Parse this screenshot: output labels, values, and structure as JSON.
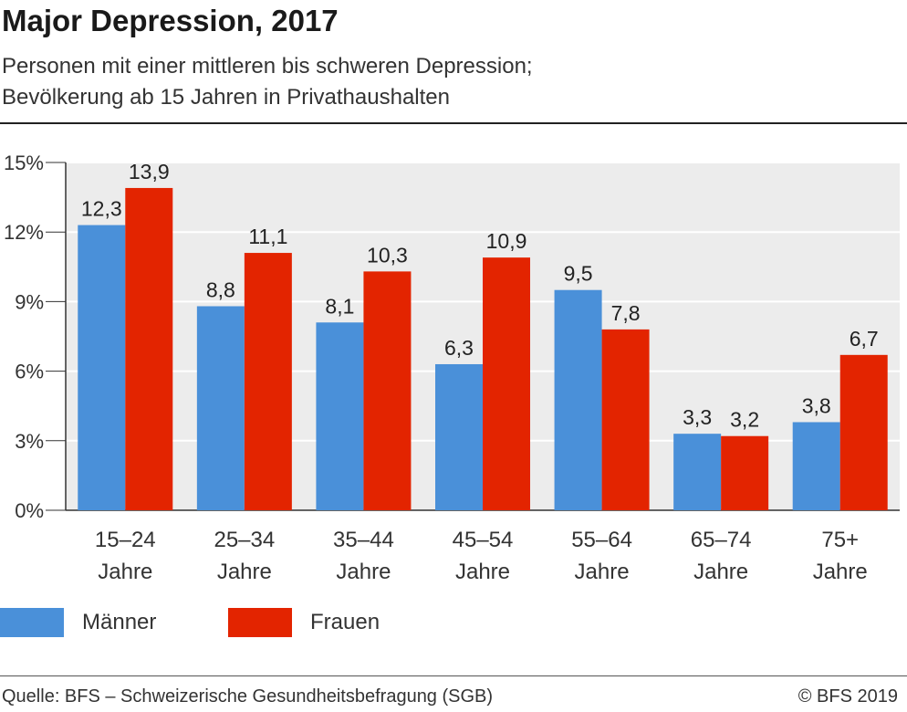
{
  "title": "Major Depression, 2017",
  "subtitle_line1": "Personen mit einer mittleren bis schweren Depression;",
  "subtitle_line2": "Bevölkerung ab 15 Jahren in Privathaushalten",
  "source": "Quelle: BFS – Schweizerische Gesundheitsbefragung (SGB)",
  "copyright": "© BFS 2019",
  "chart_data": {
    "type": "bar",
    "categories": [
      [
        "15–24",
        "Jahre"
      ],
      [
        "25–34",
        "Jahre"
      ],
      [
        "35–44",
        "Jahre"
      ],
      [
        "45–54",
        "Jahre"
      ],
      [
        "55–64",
        "Jahre"
      ],
      [
        "65–74",
        "Jahre"
      ],
      [
        "75+",
        "Jahre"
      ]
    ],
    "series": [
      {
        "name": "Männer",
        "color": "#4a90d9",
        "values": [
          12.3,
          8.8,
          8.1,
          6.3,
          9.5,
          3.3,
          3.8
        ],
        "labels": [
          "12,3",
          "8,8",
          "8,1",
          "6,3",
          "9,5",
          "3,3",
          "3,8"
        ]
      },
      {
        "name": "Frauen",
        "color": "#e32400",
        "values": [
          13.9,
          11.1,
          10.3,
          10.9,
          7.8,
          3.2,
          6.7
        ],
        "labels": [
          "13,9",
          "11,1",
          "10,3",
          "10,9",
          "7,8",
          "3,2",
          "6,7"
        ]
      }
    ],
    "yticks": [
      "0%",
      "3%",
      "6%",
      "9%",
      "12%",
      "15%"
    ],
    "ylim": [
      0,
      15
    ],
    "grid": true,
    "legend": "bottom-left",
    "plot_background": "#ececec",
    "gridline_color": "#ffffff"
  }
}
